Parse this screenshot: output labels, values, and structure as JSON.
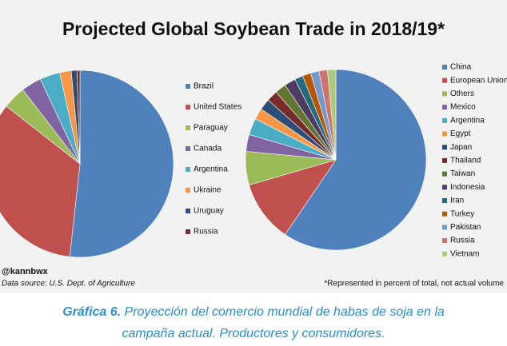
{
  "title": "Projected Global Soybean Trade in 2018/19*",
  "handle": "@kannbwx",
  "source": "Data source: U.S. Dept. of Agriculture",
  "note": "*Represented in percent of total, not actual volume",
  "caption": {
    "label": "Gráfica 6.",
    "lines": [
      "Proyección del comercio mundial de habas de soja en la",
      "campaña actual. Productores y consumidores."
    ]
  },
  "chart_data": [
    {
      "type": "pie",
      "categories": [
        "Brazil",
        "United States",
        "Paraguay",
        "Canada",
        "Argentina",
        "Ukraine",
        "Uruguay",
        "Russia"
      ],
      "values": [
        52,
        34,
        4,
        3.5,
        3.5,
        2,
        1,
        0.5
      ],
      "colors": [
        "#4f81bd",
        "#c0504d",
        "#9bbb59",
        "#8064a2",
        "#4bacc6",
        "#f79646",
        "#2c4d75",
        "#772c2a"
      ]
    },
    {
      "type": "pie",
      "categories": [
        "China",
        "European Union",
        "Others",
        "Mexico",
        "Argentina",
        "Egypt",
        "Japan",
        "Thailand",
        "Taiwan",
        "Indonesia",
        "Iran",
        "Turkey",
        "Pakistan",
        "Russia",
        "Vietnam"
      ],
      "values": [
        59.5,
        11,
        6,
        3,
        3,
        2,
        2,
        2,
        2,
        2,
        1.5,
        1.5,
        1.5,
        1.5,
        1.5
      ],
      "colors": [
        "#4f81bd",
        "#c0504d",
        "#9bbb59",
        "#8064a2",
        "#4bacc6",
        "#f79646",
        "#2c4d75",
        "#772c2a",
        "#5f7530",
        "#4d3b62",
        "#276a7c",
        "#b65708",
        "#729aca",
        "#cd7371",
        "#afc97a"
      ]
    }
  ]
}
